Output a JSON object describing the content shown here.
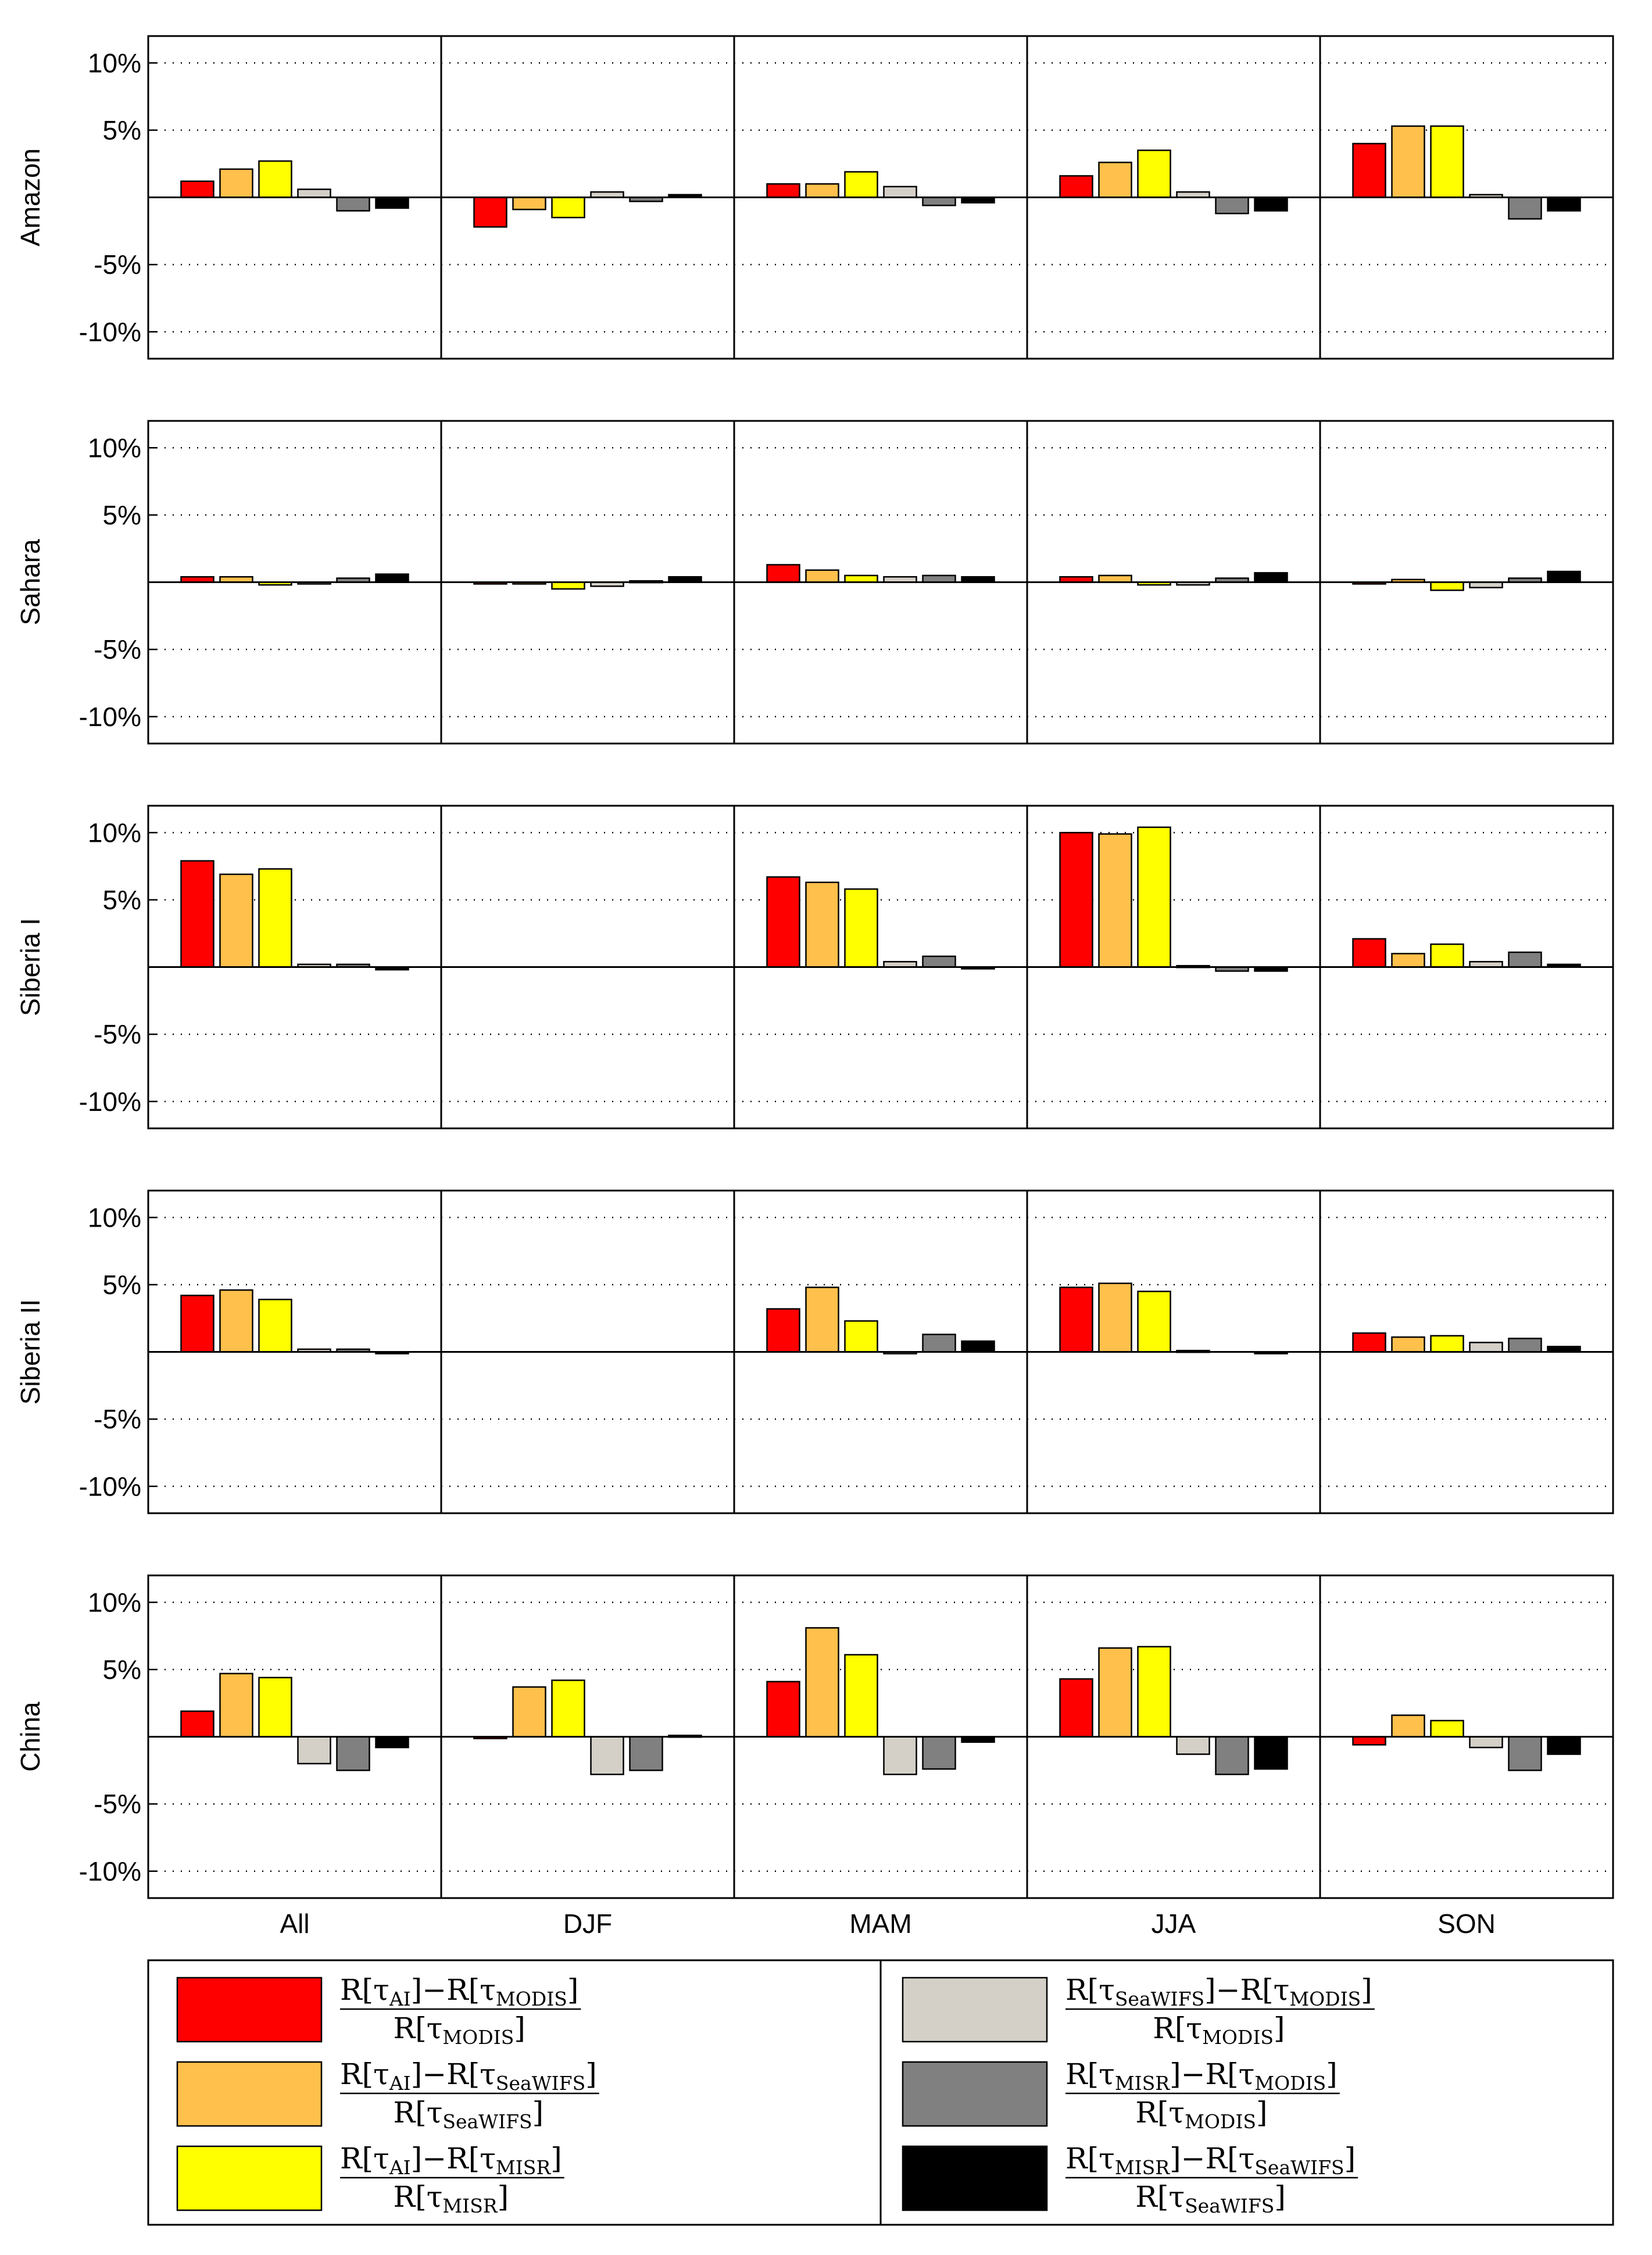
{
  "chart_data": {
    "type": "bar",
    "layout": "grouped bars, 5 regional panels stacked vertically, each split into 5 season columns",
    "ylim": [
      -12,
      12
    ],
    "yticks": [
      -10,
      -5,
      5,
      10
    ],
    "ytick_labels": [
      "-10%",
      "-5%",
      "5%",
      "10%"
    ],
    "groups": [
      "All",
      "DJF",
      "MAM",
      "JJA",
      "SON"
    ],
    "series_names": [
      "(R[tau_AI]-R[tau_MODIS])/R[tau_MODIS]",
      "(R[tau_AI]-R[tau_SeaWIFS])/R[tau_SeaWIFS]",
      "(R[tau_AI]-R[tau_MISR])/R[tau_MISR]",
      "(R[tau_SeaWIFS]-R[tau_MODIS])/R[tau_MODIS]",
      "(R[tau_MISR]-R[tau_MODIS])/R[tau_MODIS]",
      "(R[tau_MISR]-R[tau_SeaWIFS])/R[tau_SeaWIFS]"
    ],
    "series_colors": [
      "#ff0000",
      "#ffc04c",
      "#ffff00",
      "#d4d0c8",
      "#808080",
      "#000000"
    ],
    "panels": [
      {
        "region": "Amazon",
        "values": [
          [
            1.2,
            2.1,
            2.7,
            0.6,
            -1.0,
            -0.8
          ],
          [
            -2.2,
            -0.9,
            -1.5,
            0.4,
            -0.3,
            0.2
          ],
          [
            1.0,
            1.0,
            1.9,
            0.8,
            -0.6,
            -0.4
          ],
          [
            1.6,
            2.6,
            3.5,
            0.4,
            -1.2,
            -1.0
          ],
          [
            4.0,
            5.3,
            5.3,
            0.2,
            -1.6,
            -1.0
          ]
        ]
      },
      {
        "region": "Sahara",
        "values": [
          [
            0.4,
            0.4,
            -0.2,
            -0.1,
            0.3,
            0.6
          ],
          [
            -0.1,
            -0.1,
            -0.5,
            -0.3,
            0.1,
            0.4
          ],
          [
            1.3,
            0.9,
            0.5,
            0.4,
            0.5,
            0.4
          ],
          [
            0.4,
            0.5,
            -0.2,
            -0.2,
            0.3,
            0.7
          ],
          [
            -0.1,
            0.2,
            -0.6,
            -0.4,
            0.3,
            0.8
          ]
        ]
      },
      {
        "region": "Siberia I",
        "values": [
          [
            7.9,
            6.9,
            7.3,
            0.2,
            0.2,
            -0.2
          ],
          [
            null,
            null,
            null,
            null,
            null,
            null
          ],
          [
            6.7,
            6.3,
            5.8,
            0.4,
            0.8,
            -0.1
          ],
          [
            10.0,
            9.9,
            10.4,
            0.1,
            -0.3,
            -0.3
          ],
          [
            2.1,
            1.0,
            1.7,
            0.4,
            1.1,
            0.2
          ]
        ]
      },
      {
        "region": "Siberia II",
        "values": [
          [
            4.2,
            4.6,
            3.9,
            0.2,
            0.2,
            -0.1
          ],
          [
            null,
            null,
            null,
            null,
            null,
            null
          ],
          [
            3.2,
            4.8,
            2.3,
            -0.1,
            1.3,
            0.8
          ],
          [
            4.8,
            5.1,
            4.5,
            0.1,
            null,
            -0.1
          ],
          [
            1.4,
            1.1,
            1.2,
            0.7,
            1.0,
            0.4
          ]
        ]
      },
      {
        "region": "China",
        "values": [
          [
            1.9,
            4.7,
            4.4,
            -2.0,
            -2.5,
            -0.8
          ],
          [
            -0.1,
            3.7,
            4.2,
            -2.8,
            -2.5,
            0.1
          ],
          [
            4.1,
            8.1,
            6.1,
            -2.8,
            -2.4,
            -0.4
          ],
          [
            4.3,
            6.6,
            6.7,
            -1.3,
            -2.8,
            -2.4
          ],
          [
            -0.6,
            1.6,
            1.2,
            -0.8,
            -2.5,
            -1.3
          ]
        ]
      }
    ]
  },
  "legend": [
    {
      "num_base": "R[τ",
      "num_sub_a": "AI",
      "num_mid": "]−R[τ",
      "num_sub_b": "MODIS",
      "num_end": "]",
      "den_base": "R[τ",
      "den_sub": "MODIS",
      "den_end": "]",
      "color": "#ff0000"
    },
    {
      "num_base": "R[τ",
      "num_sub_a": "AI",
      "num_mid": "]−R[τ",
      "num_sub_b": "SeaWIFS",
      "num_end": "]",
      "den_base": "R[τ",
      "den_sub": "SeaWIFS",
      "den_end": "]",
      "color": "#ffc04c"
    },
    {
      "num_base": "R[τ",
      "num_sub_a": "AI",
      "num_mid": "]−R[τ",
      "num_sub_b": "MISR",
      "num_end": "]",
      "den_base": "R[τ",
      "den_sub": "MISR",
      "den_end": "]",
      "color": "#ffff00"
    },
    {
      "num_base": "R[τ",
      "num_sub_a": "SeaWIFS",
      "num_mid": "]−R[τ",
      "num_sub_b": "MODIS",
      "num_end": "]",
      "den_base": "R[τ",
      "den_sub": "MODIS",
      "den_end": "]",
      "color": "#d4d0c8"
    },
    {
      "num_base": "R[τ",
      "num_sub_a": "MISR",
      "num_mid": "]−R[τ",
      "num_sub_b": "MODIS",
      "num_end": "]",
      "den_base": "R[τ",
      "den_sub": "MODIS",
      "den_end": "]",
      "color": "#808080"
    },
    {
      "num_base": "R[τ",
      "num_sub_a": "MISR",
      "num_mid": "]−R[τ",
      "num_sub_b": "SeaWIFS",
      "num_end": "]",
      "den_base": "R[τ",
      "den_sub": "SeaWIFS",
      "den_end": "]",
      "color": "#000000"
    }
  ]
}
